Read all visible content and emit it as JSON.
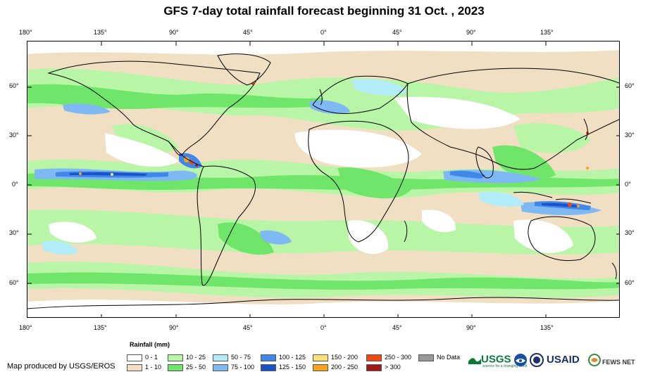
{
  "title": "GFS 7-day total rainfall forecast beginning 31 Oct. , 2023",
  "top_axis": [
    "180°",
    "135°",
    "90°",
    "45°",
    "0°",
    "45°",
    "90°",
    "135°"
  ],
  "bottom_axis": [
    "180°",
    "135°",
    "90°",
    "45°",
    "0°",
    "45°",
    "90°",
    "135°"
  ],
  "left_axis": [
    "60°",
    "30°",
    "0°",
    "30°",
    "60°"
  ],
  "right_axis": [
    "60°",
    "30°",
    "0°",
    "30°",
    "60°"
  ],
  "legend": {
    "title": "Rainfall (mm)",
    "items": [
      {
        "label": "0 - 1",
        "color": "#ffffff"
      },
      {
        "label": "1 - 10",
        "color": "#f0dfc3"
      },
      {
        "label": "10 - 25",
        "color": "#b9f5a6"
      },
      {
        "label": "25 - 50",
        "color": "#6fe56a"
      },
      {
        "label": "50 - 75",
        "color": "#b3ecf9"
      },
      {
        "label": "75 - 100",
        "color": "#7fb9f3"
      },
      {
        "label": "100 - 125",
        "color": "#3f88ea"
      },
      {
        "label": "125 - 150",
        "color": "#1c52c9"
      },
      {
        "label": "150 - 200",
        "color": "#fbe07a"
      },
      {
        "label": "200 - 250",
        "color": "#f7a21c"
      },
      {
        "label": "250 - 300",
        "color": "#f04a10"
      },
      {
        "label": "> 300",
        "color": "#a11a1a"
      },
      {
        "label": "No Data",
        "color": "#999999"
      }
    ]
  },
  "producer": "Map produced by USGS/EROS",
  "logos": {
    "usgs": "USGS",
    "usgs_tagline": "science for a changing world",
    "usaid": "USAID",
    "fewsnet": "FEWS NET"
  }
}
